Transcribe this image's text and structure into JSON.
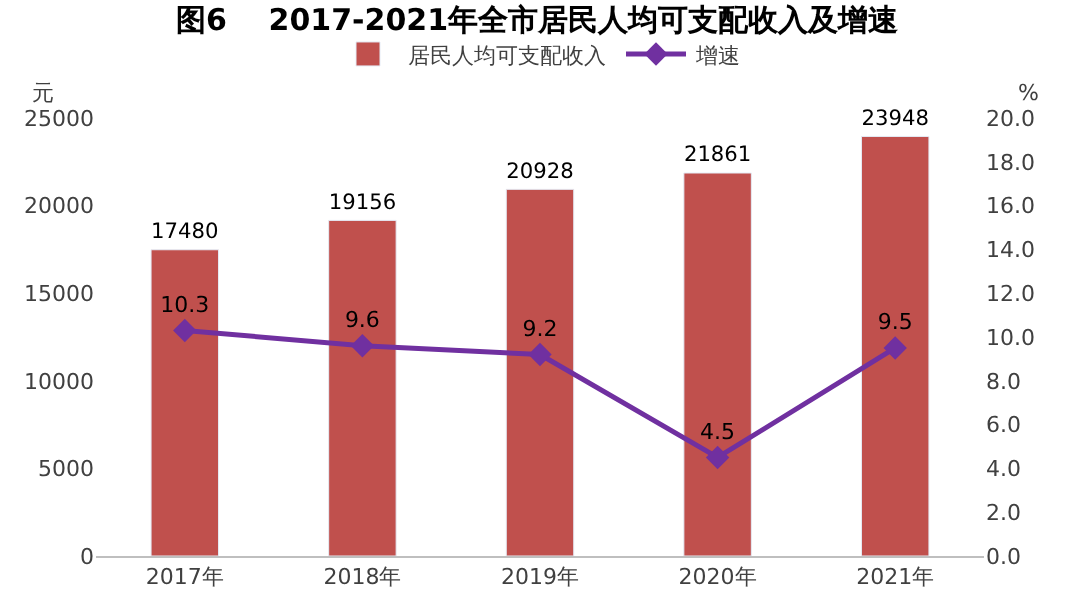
{
  "chart_data": {
    "type": "bar",
    "title": "图6    2017-2021年全市居民人均可支配收入及增速",
    "categories": [
      "2017年",
      "2018年",
      "2019年",
      "2020年",
      "2021年"
    ],
    "series": [
      {
        "name": "居民人均可支配收入",
        "color": "#c0504d",
        "values": [
          17480,
          19156,
          20928,
          21861,
          23948
        ]
      },
      {
        "name": "增速",
        "type": "line",
        "axis": "y2",
        "color": "#7030a0",
        "marker": "diamond",
        "values": [
          10.3,
          9.6,
          9.2,
          4.5,
          9.5
        ]
      }
    ],
    "ylabel": "元",
    "y2label": "%",
    "ylim": [
      0,
      25000
    ],
    "yticks": [
      0,
      5000,
      10000,
      15000,
      20000,
      25000
    ],
    "y2lim": [
      0,
      20
    ],
    "y2ticks": [
      {
        "value": 0,
        "label": "0.0"
      },
      {
        "value": 2,
        "label": "2.0"
      },
      {
        "value": 4,
        "label": "4.0"
      },
      {
        "value": 6,
        "label": "6.0"
      },
      {
        "value": 8,
        "label": "8.0"
      },
      {
        "value": 10,
        "label": "10.0"
      },
      {
        "value": 12,
        "label": "12.0"
      },
      {
        "value": 14,
        "label": "14.0"
      },
      {
        "value": 16,
        "label": "16.0"
      },
      {
        "value": 18,
        "label": "18.0"
      },
      {
        "value": 20,
        "label": "20.0"
      }
    ],
    "data_labels": true,
    "legend": "top"
  }
}
